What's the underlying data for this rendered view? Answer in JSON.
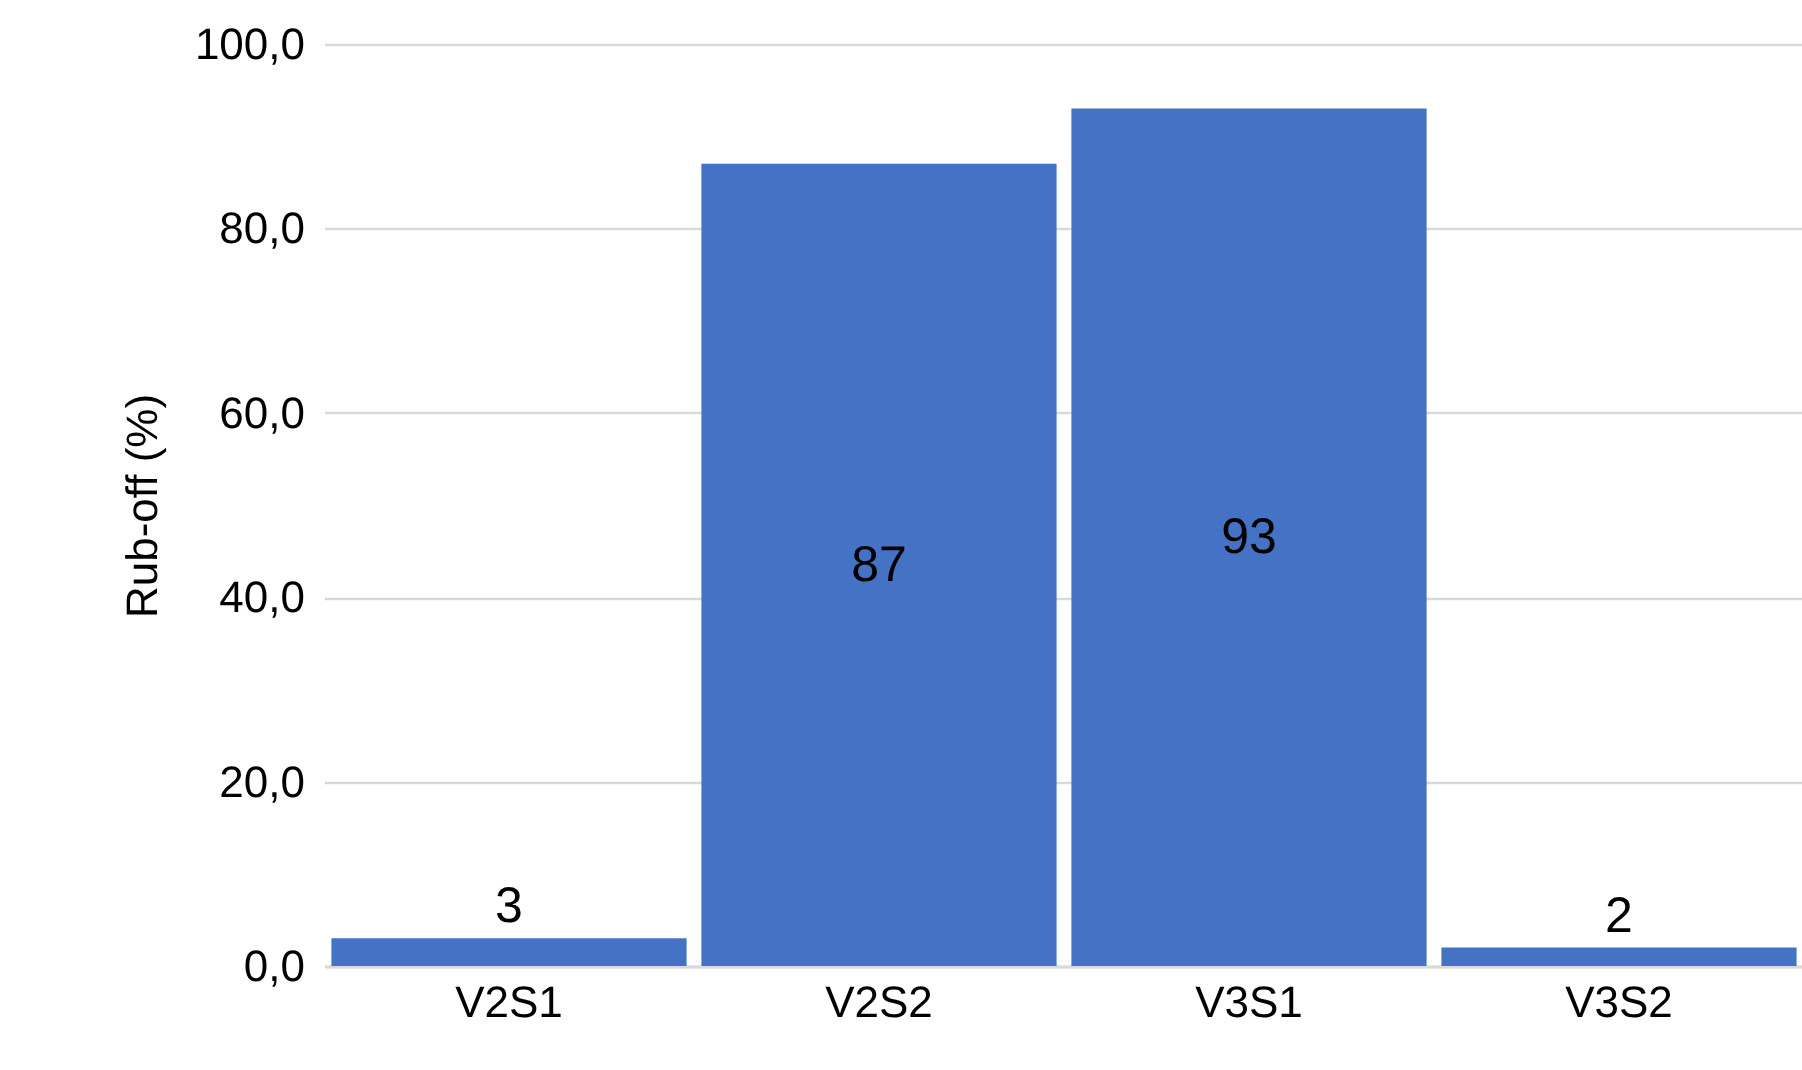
{
  "chart_data": {
    "type": "bar",
    "ylabel": "Rub-off (%)",
    "categories": [
      "V2S1",
      "V2S2",
      "V3S1",
      "V3S2"
    ],
    "values": [
      3,
      87,
      93,
      2
    ],
    "color": "#4472c4",
    "data_labels": true,
    "ylim": [
      0,
      100
    ],
    "yticks": [
      {
        "value": 0,
        "label": "0,0"
      },
      {
        "value": 20,
        "label": "20,0"
      },
      {
        "value": 40,
        "label": "40,0"
      },
      {
        "value": 60,
        "label": "60,0"
      },
      {
        "value": 80,
        "label": "80,0"
      },
      {
        "value": 100,
        "label": "100,0"
      }
    ],
    "grid": "y"
  }
}
